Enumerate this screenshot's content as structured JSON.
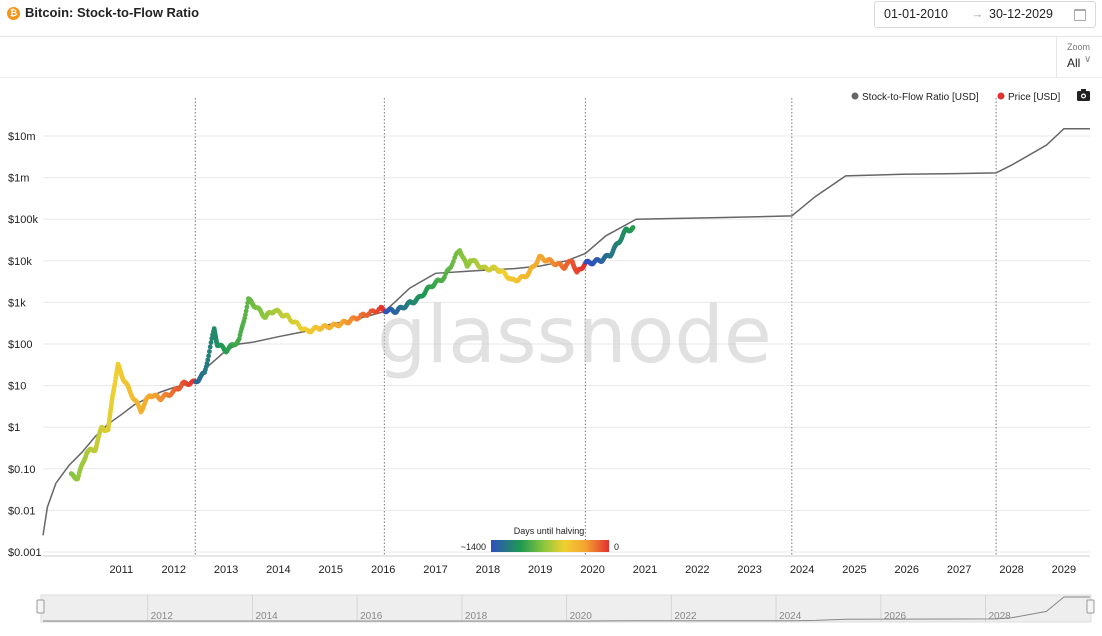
{
  "header": {
    "title": "Bitcoin: Stock-to-Flow Ratio",
    "coin_symbol": "₿",
    "date_start": "01-01-2010",
    "date_arrow": "→",
    "date_end": "30-12-2029"
  },
  "zoom": {
    "label": "Zoom",
    "value": "All"
  },
  "legend": [
    {
      "label": "Stock-to-Flow Ratio [USD]",
      "color": "#666666"
    },
    {
      "label": "Price [USD]",
      "color": "#e03232"
    }
  ],
  "watermark": "glassnode",
  "colorbar": {
    "title": "Days until halving",
    "min_label": "~1400",
    "max_label": "0",
    "colors": [
      "#2f4fbf",
      "#1e9a50",
      "#8cc63e",
      "#f0d030",
      "#f4a330",
      "#e33030"
    ]
  },
  "chart_data": {
    "type": "line",
    "title": "Bitcoin: Stock-to-Flow Ratio",
    "y_scale": "log",
    "ylim": [
      0.001,
      10000000
    ],
    "y_ticks": [
      {
        "label": "$10m",
        "value": 10000000
      },
      {
        "label": "$1m",
        "value": 1000000
      },
      {
        "label": "$100k",
        "value": 100000
      },
      {
        "label": "$10k",
        "value": 10000
      },
      {
        "label": "$1k",
        "value": 1000
      },
      {
        "label": "$100",
        "value": 100
      },
      {
        "label": "$10",
        "value": 10
      },
      {
        "label": "$1",
        "value": 1
      },
      {
        "label": "$0.10",
        "value": 0.1
      },
      {
        "label": "$0.01",
        "value": 0.01
      },
      {
        "label": "$0.001",
        "value": 0.001
      }
    ],
    "x_range": [
      "2010-01-01",
      "2029-12-30"
    ],
    "x_ticks": [
      "2011",
      "2012",
      "2013",
      "2014",
      "2015",
      "2016",
      "2017",
      "2018",
      "2019",
      "2020",
      "2021",
      "2022",
      "2023",
      "2024",
      "2025",
      "2026",
      "2027",
      "2028",
      "2029"
    ],
    "halving_dates": [
      "2012-11-28",
      "2016-07-09",
      "2020-05-11",
      "2024-04-20",
      "2028-03-15"
    ],
    "grid": true,
    "legend_position": "top-right",
    "series": [
      {
        "name": "Stock-to-Flow Ratio [USD]",
        "color": "#666666",
        "points": [
          [
            "2010-01-01",
            0.0025
          ],
          [
            "2010-02-01",
            0.012
          ],
          [
            "2010-04-01",
            0.045
          ],
          [
            "2010-07-01",
            0.12
          ],
          [
            "2010-10-01",
            0.25
          ],
          [
            "2011-01-01",
            0.6
          ],
          [
            "2011-04-01",
            1.2
          ],
          [
            "2011-07-01",
            2.0
          ],
          [
            "2011-10-01",
            3.5
          ],
          [
            "2012-01-01",
            5
          ],
          [
            "2012-04-01",
            7
          ],
          [
            "2012-07-01",
            9
          ],
          [
            "2012-11-28",
            12
          ],
          [
            "2013-03-01",
            30
          ],
          [
            "2013-07-01",
            70
          ],
          [
            "2013-10-01",
            100
          ],
          [
            "2014-01-01",
            110
          ],
          [
            "2014-07-01",
            150
          ],
          [
            "2015-01-01",
            200
          ],
          [
            "2015-07-01",
            300
          ],
          [
            "2016-01-01",
            400
          ],
          [
            "2016-07-09",
            600
          ],
          [
            "2016-10-01",
            1100
          ],
          [
            "2017-01-01",
            2200
          ],
          [
            "2017-07-01",
            5000
          ],
          [
            "2018-01-01",
            5500
          ],
          [
            "2018-07-01",
            6000
          ],
          [
            "2019-01-01",
            6500
          ],
          [
            "2019-07-01",
            7500
          ],
          [
            "2020-01-01",
            10000
          ],
          [
            "2020-05-11",
            15000
          ],
          [
            "2020-10-01",
            40000
          ],
          [
            "2021-05-01",
            100000
          ],
          [
            "2023-01-01",
            110000
          ],
          [
            "2024-04-20",
            120000
          ],
          [
            "2024-10-01",
            350000
          ],
          [
            "2025-05-01",
            1100000
          ],
          [
            "2026-06-01",
            1200000
          ],
          [
            "2027-06-01",
            1250000
          ],
          [
            "2028-03-15",
            1300000
          ],
          [
            "2028-07-01",
            2000000
          ],
          [
            "2029-03-01",
            6000000
          ],
          [
            "2029-07-01",
            15000000
          ],
          [
            "2029-12-30",
            15000000
          ]
        ]
      },
      {
        "name": "Price [USD]",
        "color": "#e03232",
        "points": [
          [
            "2010-07-17",
            0.07
          ],
          [
            "2010-09-01",
            0.06
          ],
          [
            "2010-11-01",
            0.25
          ],
          [
            "2011-01-01",
            0.3
          ],
          [
            "2011-02-15",
            1.0
          ],
          [
            "2011-04-01",
            0.8
          ],
          [
            "2011-05-01",
            6
          ],
          [
            "2011-06-08",
            30
          ],
          [
            "2011-07-15",
            15
          ],
          [
            "2011-09-01",
            7
          ],
          [
            "2011-11-15",
            2.5
          ],
          [
            "2012-01-15",
            6
          ],
          [
            "2012-04-01",
            5
          ],
          [
            "2012-07-01",
            7
          ],
          [
            "2012-09-01",
            11
          ],
          [
            "2012-11-28",
            12
          ],
          [
            "2013-02-01",
            20
          ],
          [
            "2013-04-09",
            230
          ],
          [
            "2013-05-01",
            100
          ],
          [
            "2013-07-01",
            70
          ],
          [
            "2013-10-01",
            125
          ],
          [
            "2013-12-04",
            1150
          ],
          [
            "2014-01-15",
            850
          ],
          [
            "2014-04-01",
            450
          ],
          [
            "2014-06-01",
            650
          ],
          [
            "2014-09-01",
            450
          ],
          [
            "2015-01-15",
            200
          ],
          [
            "2015-04-01",
            240
          ],
          [
            "2015-08-01",
            280
          ],
          [
            "2015-11-01",
            350
          ],
          [
            "2016-01-01",
            430
          ],
          [
            "2016-06-15",
            700
          ],
          [
            "2016-07-09",
            650
          ],
          [
            "2016-10-01",
            620
          ],
          [
            "2017-01-01",
            950
          ],
          [
            "2017-03-01",
            1200
          ],
          [
            "2017-06-01",
            2500
          ],
          [
            "2017-09-01",
            4000
          ],
          [
            "2017-12-17",
            19000
          ],
          [
            "2018-02-06",
            7000
          ],
          [
            "2018-03-01",
            11000
          ],
          [
            "2018-06-01",
            6500
          ],
          [
            "2018-09-01",
            6500
          ],
          [
            "2018-11-20",
            4200
          ],
          [
            "2018-12-15",
            3300
          ],
          [
            "2019-03-01",
            3900
          ],
          [
            "2019-04-15",
            5200
          ],
          [
            "2019-06-26",
            12000
          ],
          [
            "2019-09-01",
            10000
          ],
          [
            "2019-12-15",
            7100
          ],
          [
            "2020-02-10",
            10300
          ],
          [
            "2020-03-13",
            5000
          ],
          [
            "2020-05-11",
            8800
          ],
          [
            "2020-07-01",
            9200
          ],
          [
            "2020-09-01",
            10500
          ],
          [
            "2020-11-01",
            14000
          ],
          [
            "2021-01-01",
            29000
          ],
          [
            "2021-02-20",
            55000
          ],
          [
            "2021-04-13",
            60000
          ]
        ]
      }
    ]
  },
  "navigator": {
    "labels": [
      "2012",
      "2014",
      "2016",
      "2018",
      "2020",
      "2022",
      "2024",
      "2026",
      "2028"
    ]
  }
}
